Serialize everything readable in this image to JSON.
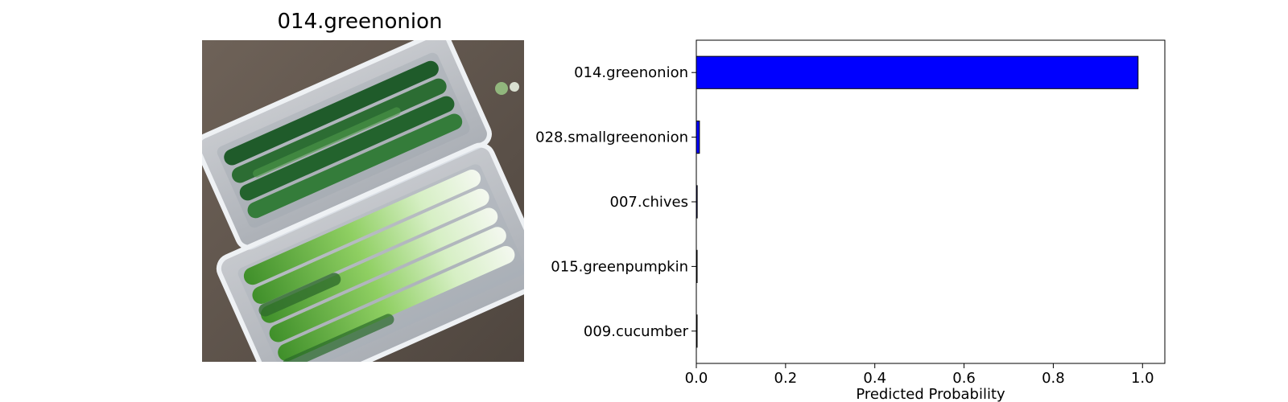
{
  "image_panel": {
    "title": "014.greenonion"
  },
  "chart_data": {
    "type": "bar",
    "orientation": "horizontal",
    "categories": [
      "014.greenonion",
      "028.smallgreenonion",
      "007.chives",
      "015.greenpumpkin",
      "009.cucumber"
    ],
    "values": [
      0.99,
      0.007,
      0.002,
      0.0005,
      0.0003
    ],
    "xlabel": "Predicted Probability",
    "xlim": [
      0,
      1.05
    ],
    "xticks": [
      "0.0",
      "0.2",
      "0.4",
      "0.6",
      "0.8",
      "1.0"
    ],
    "xtick_values": [
      0,
      0.2,
      0.4,
      0.6,
      0.8,
      1.0
    ],
    "bar_color": "#0000ff",
    "edge_color": "#000000",
    "grid": false,
    "legend": "none"
  }
}
